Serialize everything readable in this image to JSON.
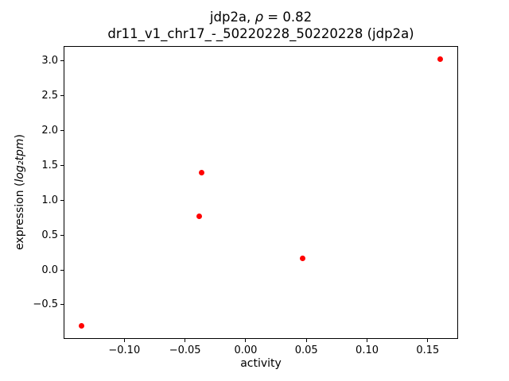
{
  "figure": {
    "title": {
      "line1_prefix": "jdp2a, ",
      "line1_rho": "ρ",
      "line1_suffix": " = 0.82",
      "line2": "dr11_v1_chr17_-_50220228_50220228 (jdp2a)"
    },
    "xlabel": "activity",
    "ylabel": {
      "prefix": "expression (",
      "math": "log₂tpm",
      "suffix": ")"
    }
  },
  "chart_data": {
    "type": "scatter",
    "title": "jdp2a, ρ = 0.82",
    "subtitle": "dr11_v1_chr17_-_50220228_50220228 (jdp2a)",
    "rho": 0.82,
    "xlabel": "activity",
    "ylabel": "expression (log₂tpm)",
    "points": [
      {
        "x": -0.135,
        "y": -0.8
      },
      {
        "x": -0.038,
        "y": 0.77
      },
      {
        "x": -0.036,
        "y": 1.4
      },
      {
        "x": 0.047,
        "y": 0.16
      },
      {
        "x": 0.16,
        "y": 3.02
      }
    ],
    "marker_color": "#ff0000",
    "marker_radius_px": 3.5,
    "xlim": [
      -0.15,
      0.175
    ],
    "ylim": [
      -0.99,
      3.21
    ],
    "xticks": {
      "values": [
        -0.1,
        -0.05,
        0.0,
        0.05,
        0.1,
        0.15
      ],
      "labels": [
        "−0.10",
        "−0.05",
        "0.00",
        "0.05",
        "0.10",
        "0.15"
      ]
    },
    "yticks": {
      "values": [
        -0.5,
        0.0,
        0.5,
        1.0,
        1.5,
        2.0,
        2.5,
        3.0
      ],
      "labels": [
        "−0.5",
        "0.0",
        "0.5",
        "1.0",
        "1.5",
        "2.0",
        "2.5",
        "3.0"
      ]
    },
    "grid": false,
    "legend": null
  }
}
